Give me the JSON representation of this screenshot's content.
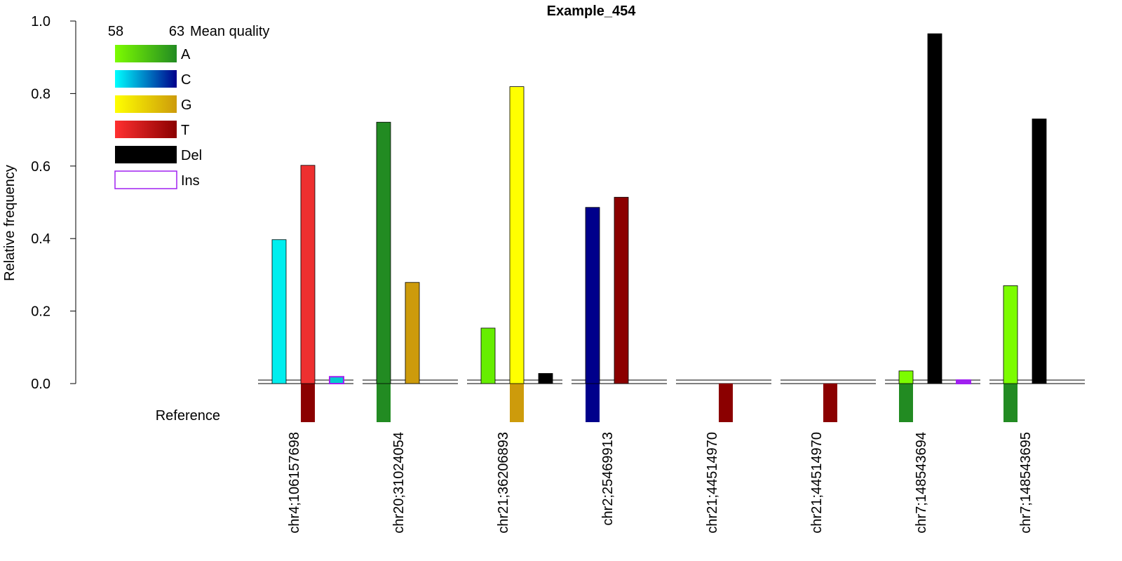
{
  "chart_data": {
    "type": "bar",
    "title": "Example_454",
    "ylabel": "Relative frequency",
    "ylim": [
      0,
      1
    ],
    "yticks": [
      "0.0",
      "0.2",
      "0.4",
      "0.6",
      "0.8",
      "1.0"
    ],
    "reference_label": "Reference",
    "legend": {
      "placement": "top-left",
      "quality_min": "58",
      "quality_max": "63",
      "quality_title": "Mean quality",
      "entries": [
        {
          "label": "A",
          "from": "#7CFC00",
          "to": "#228B22"
        },
        {
          "label": "C",
          "from": "#00FFFF",
          "to": "#00008B"
        },
        {
          "label": "G",
          "from": "#FFFF00",
          "to": "#CD9B0B"
        },
        {
          "label": "T",
          "from": "#FF3030",
          "to": "#8B0000"
        },
        {
          "label": "Del",
          "from": "#000000",
          "to": "#000000"
        },
        {
          "label": "Ins",
          "outline": "#A020F0"
        }
      ]
    },
    "groups": [
      {
        "position": "chr4;106157698",
        "reference": "T",
        "reference_color": "#8B0000",
        "bars": [
          {
            "base": "C",
            "value": 0.397,
            "color": "#00EEEE"
          },
          {
            "base": "T",
            "value": 0.602,
            "color": "#EE3030"
          },
          {
            "base": "Ins",
            "value": 0.015,
            "color": "#00CDCD",
            "outline": "#A020F0"
          }
        ]
      },
      {
        "position": "chr20;31024054",
        "reference": "A",
        "reference_color": "#228B22",
        "bars": [
          {
            "base": "A",
            "value": 0.721,
            "color": "#228B22"
          },
          {
            "base": "G",
            "value": 0.279,
            "color": "#CD9B0B"
          }
        ]
      },
      {
        "position": "chr21;36206893",
        "reference": "G",
        "reference_color": "#CD9B0B",
        "bars": [
          {
            "base": "A",
            "value": 0.153,
            "color": "#66EE00"
          },
          {
            "base": "G",
            "value": 0.819,
            "color": "#FFFF00"
          },
          {
            "base": "Del",
            "value": 0.028,
            "color": "#000000"
          }
        ]
      },
      {
        "position": "chr2;25469913",
        "reference": "C",
        "reference_color": "#00008B",
        "bars": [
          {
            "base": "C",
            "value": 0.486,
            "color": "#00008B"
          },
          {
            "base": "T",
            "value": 0.514,
            "color": "#8B0000"
          }
        ]
      },
      {
        "position": "chr21;44514970",
        "reference": "T",
        "reference_color": "#8B0000",
        "bars": []
      },
      {
        "position": "chr21;44514970",
        "reference": "T",
        "reference_color": "#8B0000",
        "bars": []
      },
      {
        "position": "chr7;148543694",
        "reference": "A",
        "reference_color": "#228B22",
        "bars": [
          {
            "base": "A",
            "value": 0.035,
            "color": "#7CFC00"
          },
          {
            "base": "Del",
            "value": 0.965,
            "color": "#000000"
          },
          {
            "base": "Ins",
            "value": 0.0,
            "color": "#A020F0",
            "outline": "#A020F0"
          }
        ]
      },
      {
        "position": "chr7;148543695",
        "reference": "A",
        "reference_color": "#228B22",
        "bars": [
          {
            "base": "A",
            "value": 0.27,
            "color": "#7CFC00"
          },
          {
            "base": "Del",
            "value": 0.73,
            "color": "#000000"
          }
        ]
      }
    ]
  }
}
